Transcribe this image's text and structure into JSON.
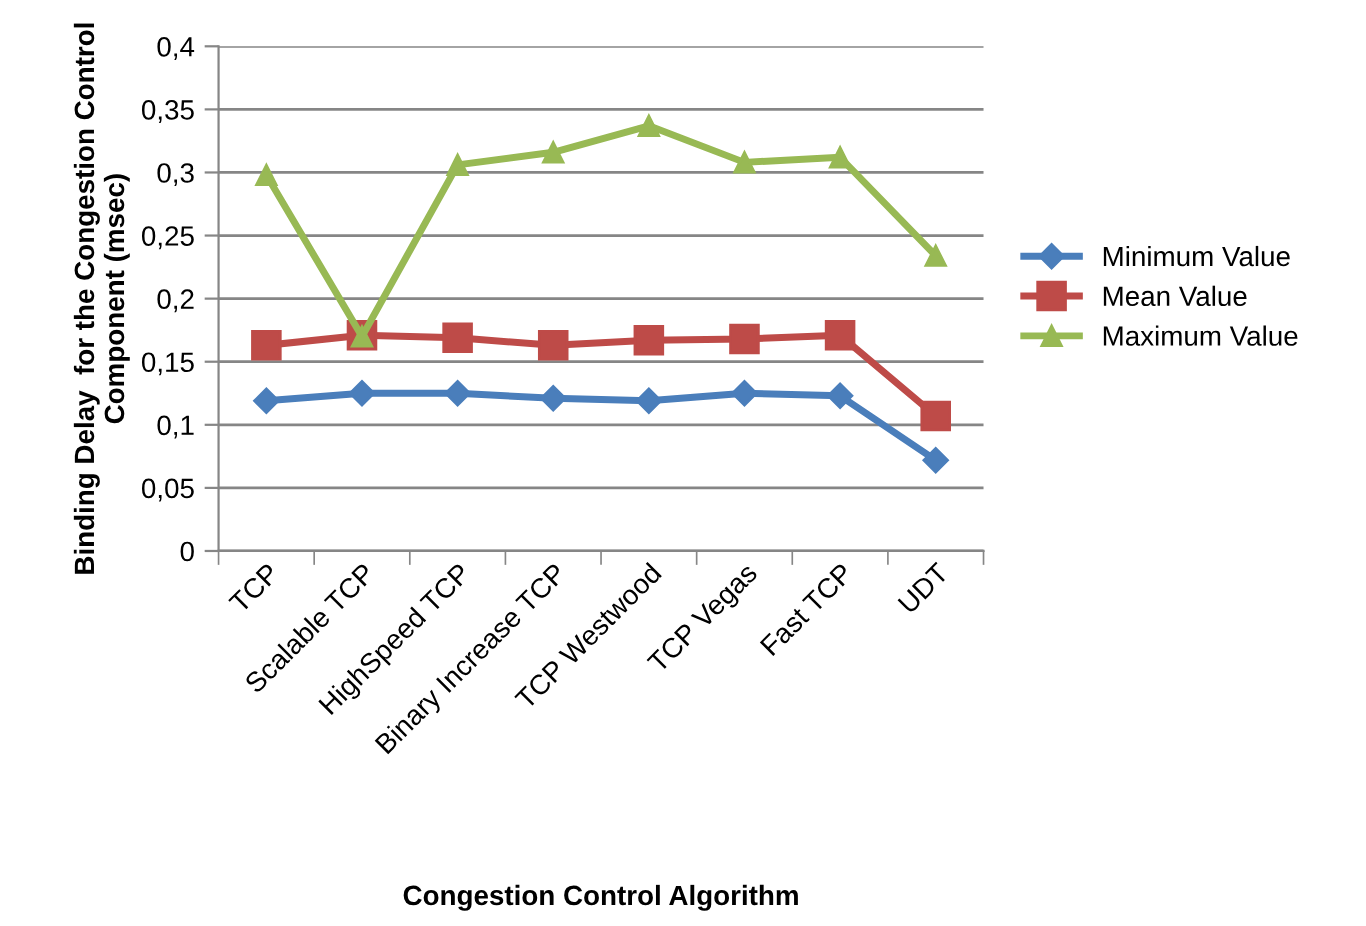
{
  "chart_data": {
    "type": "line",
    "xlabel": "Congestion Control Algorithm",
    "ylabel": "Binding Delay  for the Congestion Control Component (msec)",
    "categories": [
      "TCP",
      "Scalable TCP",
      "HighSpeed TCP",
      "Binary Increase TCP",
      "TCP Westwood",
      "TCP Vegas",
      "Fast TCP",
      "UDT"
    ],
    "series": [
      {
        "name": "Minimum Value",
        "color": "#4a7ebb",
        "marker": "diamond",
        "values": [
          0.119,
          0.125,
          0.125,
          0.121,
          0.119,
          0.125,
          0.123,
          0.072
        ]
      },
      {
        "name": "Mean Value",
        "color": "#be4b48",
        "marker": "square",
        "values": [
          0.163,
          0.171,
          0.169,
          0.163,
          0.167,
          0.168,
          0.171,
          0.107
        ]
      },
      {
        "name": "Maximum Value",
        "color": "#98b954",
        "marker": "triangle",
        "values": [
          0.298,
          0.17,
          0.306,
          0.316,
          0.337,
          0.308,
          0.312,
          0.234
        ]
      }
    ],
    "ylim": [
      0,
      0.4
    ],
    "yticks": [
      {
        "value": 0,
        "label": "0"
      },
      {
        "value": 0.05,
        "label": "0,05"
      },
      {
        "value": 0.1,
        "label": "0,1"
      },
      {
        "value": 0.15,
        "label": "0,15"
      },
      {
        "value": 0.2,
        "label": "0,2"
      },
      {
        "value": 0.25,
        "label": "0,25"
      },
      {
        "value": 0.3,
        "label": "0,3"
      },
      {
        "value": 0.35,
        "label": "0,35"
      },
      {
        "value": 0.4,
        "label": "0,4"
      }
    ],
    "grid": "y",
    "legend": "right"
  }
}
